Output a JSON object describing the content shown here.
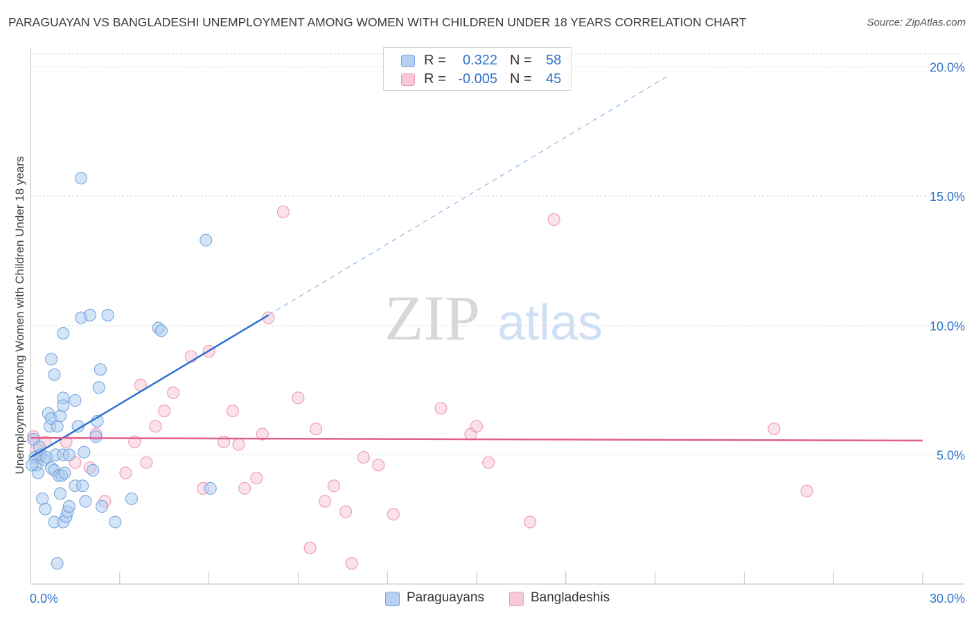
{
  "title": "PARAGUAYAN VS BANGLADESHI UNEMPLOYMENT AMONG WOMEN WITH CHILDREN UNDER 18 YEARS CORRELATION CHART",
  "source": "Source: ZipAtlas.com",
  "watermark": {
    "zip": "ZIP",
    "atlas": "atlas"
  },
  "legend": {
    "r_label": "R =",
    "n_label": "N =",
    "rows": [
      {
        "r": "0.322",
        "n": "58"
      },
      {
        "r": "-0.005",
        "n": "45"
      }
    ]
  },
  "colors": {
    "blue_fill": "#a9c9f0",
    "blue_stroke": "#6f9fdc",
    "blue_line": "#2a6fd0",
    "pink_fill": "#f7bfd0",
    "pink_stroke": "#ec8fae",
    "pink_line": "#e0608a",
    "tick_text": "#2e74c8",
    "grid": "#dcdcdc"
  },
  "chart_data": {
    "type": "scatter",
    "title": "PARAGUAYAN VS BANGLADESHI UNEMPLOYMENT AMONG WOMEN WITH CHILDREN UNDER 18 YEARS CORRELATION CHART",
    "xlabel": "",
    "ylabel": "Unemployment Among Women with Children Under 18 years",
    "xlim": [
      0,
      30
    ],
    "ylim": [
      0.0,
      20.5
    ],
    "x_tick_labels": [
      "0.0%",
      "30.0%"
    ],
    "y_ticks": [
      5,
      10,
      15,
      20
    ],
    "y_tick_labels": [
      "5.0%",
      "10.0%",
      "15.0%",
      "20.0%"
    ],
    "series": [
      {
        "name": "Paraguayans",
        "trend": {
          "x0": 0.0,
          "y0": 4.9,
          "x1": 8.0,
          "y1": 10.4,
          "dash_to_x": 21.5,
          "dash_to_y": 19.7
        },
        "points": [
          [
            0.1,
            5.6
          ],
          [
            0.15,
            4.9
          ],
          [
            0.2,
            4.6
          ],
          [
            0.25,
            4.3
          ],
          [
            0.3,
            5.3
          ],
          [
            0.35,
            5.0
          ],
          [
            0.4,
            3.3
          ],
          [
            0.45,
            4.8
          ],
          [
            0.5,
            2.9
          ],
          [
            0.55,
            4.9
          ],
          [
            0.6,
            6.6
          ],
          [
            0.65,
            6.1
          ],
          [
            0.7,
            6.4
          ],
          [
            0.7,
            8.7
          ],
          [
            0.7,
            4.5
          ],
          [
            0.8,
            8.1
          ],
          [
            0.8,
            2.4
          ],
          [
            0.8,
            4.4
          ],
          [
            0.85,
            5.0
          ],
          [
            0.9,
            6.1
          ],
          [
            0.9,
            0.8
          ],
          [
            0.95,
            4.2
          ],
          [
            1.0,
            3.5
          ],
          [
            1.05,
            4.2
          ],
          [
            1.1,
            2.4
          ],
          [
            1.1,
            5.0
          ],
          [
            1.0,
            6.5
          ],
          [
            1.1,
            7.2
          ],
          [
            1.1,
            6.9
          ],
          [
            1.1,
            9.7
          ],
          [
            1.15,
            4.3
          ],
          [
            1.2,
            2.6
          ],
          [
            1.25,
            2.8
          ],
          [
            1.3,
            3.0
          ],
          [
            1.3,
            5.0
          ],
          [
            1.5,
            7.1
          ],
          [
            1.5,
            3.8
          ],
          [
            1.6,
            6.1
          ],
          [
            1.7,
            10.3
          ],
          [
            1.7,
            15.7
          ],
          [
            1.75,
            3.8
          ],
          [
            1.8,
            5.1
          ],
          [
            1.85,
            3.2
          ],
          [
            2.0,
            10.4
          ],
          [
            2.1,
            4.4
          ],
          [
            2.2,
            5.7
          ],
          [
            2.25,
            6.3
          ],
          [
            2.3,
            7.6
          ],
          [
            2.35,
            8.3
          ],
          [
            2.4,
            3.0
          ],
          [
            2.6,
            10.4
          ],
          [
            2.85,
            2.4
          ],
          [
            3.4,
            3.3
          ],
          [
            4.3,
            9.9
          ],
          [
            4.4,
            9.8
          ],
          [
            5.9,
            13.3
          ],
          [
            6.05,
            3.7
          ],
          [
            0.05,
            4.6
          ]
        ]
      },
      {
        "name": "Bangladeshis",
        "trend": {
          "x0": 0.0,
          "y0": 5.65,
          "x1": 30.0,
          "y1": 5.55
        },
        "points": [
          [
            0.1,
            5.7
          ],
          [
            0.3,
            4.9
          ],
          [
            1.2,
            5.5
          ],
          [
            1.5,
            4.7
          ],
          [
            2.2,
            5.8
          ],
          [
            2.5,
            3.2
          ],
          [
            3.2,
            4.3
          ],
          [
            3.5,
            5.5
          ],
          [
            3.7,
            7.7
          ],
          [
            3.9,
            4.7
          ],
          [
            4.2,
            6.1
          ],
          [
            4.5,
            6.7
          ],
          [
            4.8,
            7.4
          ],
          [
            5.4,
            8.8
          ],
          [
            5.8,
            3.7
          ],
          [
            6.0,
            9.0
          ],
          [
            6.5,
            5.5
          ],
          [
            6.8,
            6.7
          ],
          [
            7.0,
            5.4
          ],
          [
            7.2,
            3.7
          ],
          [
            7.6,
            4.1
          ],
          [
            7.8,
            5.8
          ],
          [
            8.0,
            10.3
          ],
          [
            8.5,
            14.4
          ],
          [
            9.0,
            7.2
          ],
          [
            9.4,
            1.4
          ],
          [
            9.6,
            6.0
          ],
          [
            9.9,
            3.2
          ],
          [
            10.2,
            3.8
          ],
          [
            10.6,
            2.8
          ],
          [
            10.8,
            0.8
          ],
          [
            11.2,
            4.9
          ],
          [
            11.7,
            4.6
          ],
          [
            12.2,
            2.7
          ],
          [
            13.8,
            6.8
          ],
          [
            14.8,
            5.8
          ],
          [
            15.0,
            6.1
          ],
          [
            15.4,
            4.7
          ],
          [
            16.8,
            2.4
          ],
          [
            17.6,
            14.1
          ],
          [
            25.0,
            6.0
          ],
          [
            26.1,
            3.6
          ],
          [
            0.5,
            5.5
          ],
          [
            2.0,
            4.5
          ],
          [
            0.2,
            5.2
          ]
        ]
      }
    ]
  }
}
